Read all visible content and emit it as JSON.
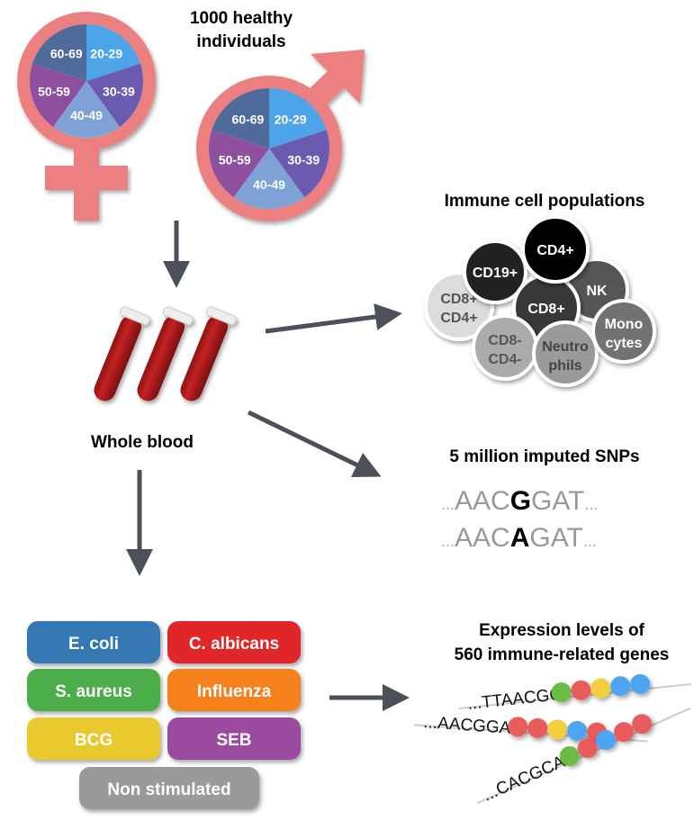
{
  "title": {
    "line1": "1000 healthy",
    "line2": "individuals"
  },
  "age_groups": [
    "20-29",
    "30-39",
    "40-49",
    "50-59",
    "60-69"
  ],
  "age_colors": [
    "#4ea4e9",
    "#6b5bb0",
    "#7fa2d6",
    "#8e509e",
    "#4f6b9b"
  ],
  "symbol_color": "#ec8080",
  "arrow_color": "#4b5059",
  "whole_blood": "Whole blood",
  "immune": {
    "title": "Immune cell populations",
    "cells": [
      {
        "l1": "CD8+",
        "l2": "CD4+",
        "color": "#dcdcdc",
        "text": "#555"
      },
      {
        "l1": "CD19+",
        "l2": "",
        "color": "#222222",
        "text": "#fff"
      },
      {
        "l1": "NK",
        "l2": "",
        "color": "#555555",
        "text": "#fff"
      },
      {
        "l1": "CD8+",
        "l2": "",
        "color": "#383838",
        "text": "#fff"
      },
      {
        "l1": "CD4+",
        "l2": "",
        "color": "#000000",
        "text": "#fff"
      },
      {
        "l1": "CD8-",
        "l2": "CD4-",
        "color": "#ababab",
        "text": "#555"
      },
      {
        "l1": "Neutro",
        "l2": "phils",
        "color": "#9a9a9a",
        "text": "#444"
      },
      {
        "l1": "Mono",
        "l2": "cytes",
        "color": "#727272",
        "text": "#fff"
      }
    ]
  },
  "snps": {
    "title": "5 million imputed SNPs",
    "seq1": {
      "pre": "AAC",
      "snp": "G",
      "post": "GAT"
    },
    "seq2": {
      "pre": "AAC",
      "snp": "A",
      "post": "GAT"
    },
    "dots": "..."
  },
  "stimuli": [
    {
      "label": "E. coli",
      "color": "#3578b4"
    },
    {
      "label": "C. albicans",
      "color": "#e1262b"
    },
    {
      "label": "S. aureus",
      "color": "#4cae4c"
    },
    {
      "label": "Influenza",
      "color": "#f5801f"
    },
    {
      "label": "BCG",
      "color": "#e9c92e"
    },
    {
      "label": "SEB",
      "color": "#9a4c9f"
    },
    {
      "label": "Non stimulated",
      "color": "#9a9a9a"
    }
  ],
  "expression": {
    "line1": "Expression levels of",
    "line2": "560 immune-related genes",
    "genes": [
      {
        "seq": "...TTAACGG",
        "beads": [
          "#6cbb44",
          "#e85c5c",
          "#f3cf3c",
          "#4ea4f3",
          "#4ea4f3"
        ]
      },
      {
        "seq": "...AACGGAT",
        "beads": [
          "#e85c5c",
          "#e85c5c",
          "#f3cf3c",
          "#4ea4f3",
          "#e85c5c"
        ]
      },
      {
        "seq": "...CACGCAA",
        "beads": [
          "#6cbb44",
          "#e85c5c",
          "#4ea4f3",
          "#e85c5c",
          "#e85c5c"
        ]
      }
    ]
  }
}
